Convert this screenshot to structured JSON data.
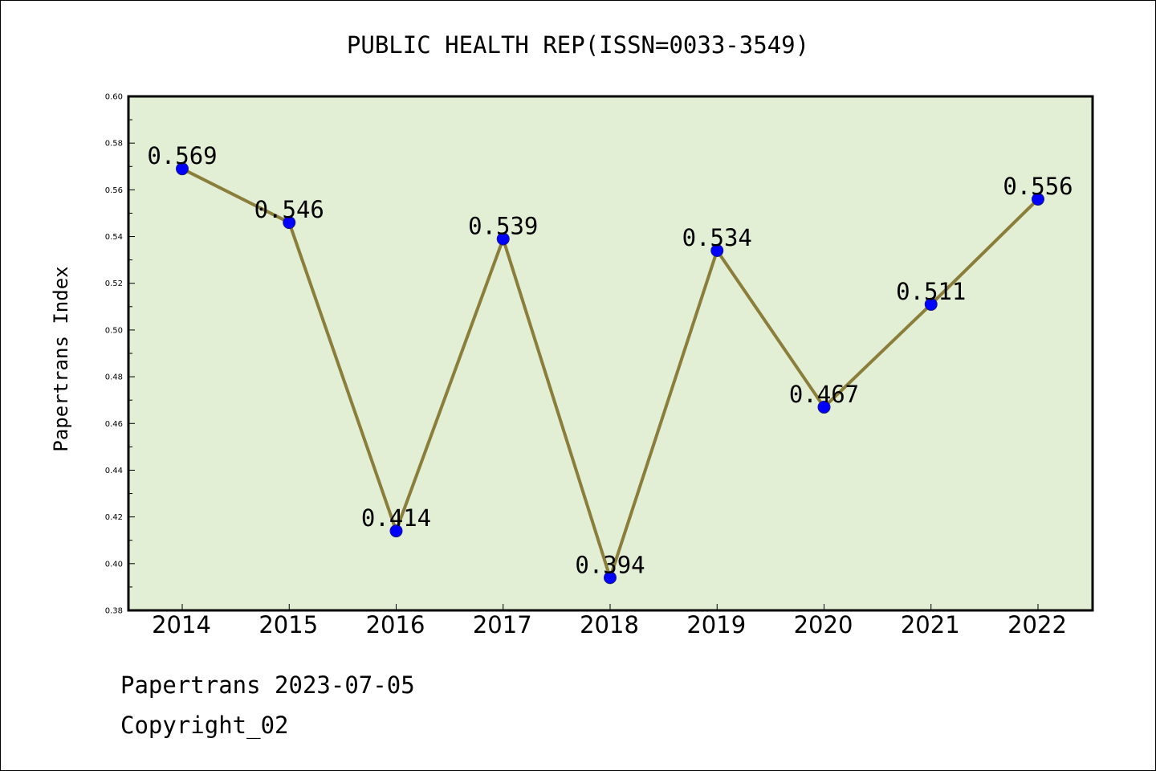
{
  "chart_data": {
    "type": "line",
    "title": "PUBLIC HEALTH REP(ISSN=0033-3549)",
    "xlabel": "",
    "ylabel": "Papertrans Index",
    "categories": [
      "2014",
      "2015",
      "2016",
      "2017",
      "2018",
      "2019",
      "2020",
      "2021",
      "2022"
    ],
    "series": [
      {
        "values": [
          0.569,
          0.546,
          0.414,
          0.539,
          0.394,
          0.534,
          0.467,
          0.511,
          0.556
        ]
      }
    ],
    "data_labels": [
      "0.569",
      "0.546",
      "0.414",
      "0.539",
      "0.394",
      "0.534",
      "0.467",
      "0.511",
      "0.556"
    ],
    "ylim": [
      0.38,
      0.6
    ],
    "yticks": [
      "0.38",
      "0.40",
      "0.42",
      "0.44",
      "0.46",
      "0.48",
      "0.50",
      "0.52",
      "0.54",
      "0.56",
      "0.58",
      "0.60"
    ],
    "grid": false,
    "legend": "none",
    "colors": {
      "plot_background": "#e2efd5",
      "line": "#8b7d3a",
      "marker": "#0000ff"
    }
  },
  "footer": {
    "line1": "Papertrans 2023-07-05",
    "line2": "Copyright_02"
  }
}
